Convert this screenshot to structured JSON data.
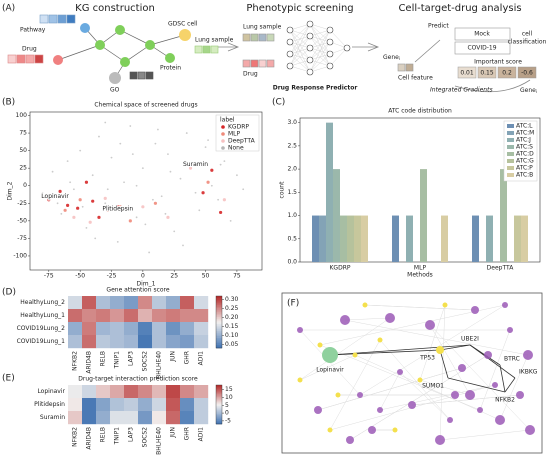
{
  "panel_a": {
    "label": "(A)",
    "titles": [
      "KG construction",
      "Phenotypic screening",
      "Cell-target-drug analysis"
    ],
    "kg": {
      "pathway": "Pathway",
      "gdsc": "GDSC cell",
      "lung": "Lung sample",
      "drug": "Drug",
      "protein": "Protein",
      "go": "GO"
    },
    "screen": {
      "lung": "Lung sample",
      "drug": "Drug",
      "predictor": "Drug Response Predictor"
    },
    "analysis": {
      "gene": "Gene",
      "sub": "i",
      "cell_feature": "Cell feature",
      "ig": "Integrated Gradients",
      "predict": "Predict",
      "mock": "Mock",
      "covid": "COVID-19",
      "cell_classification": [
        "cell",
        "classification"
      ],
      "important": "Important score",
      "scores": [
        0.01,
        0.15,
        0.2,
        -0.6
      ],
      "gene2": "Gene",
      "sub2": "i"
    }
  },
  "chart_data": [
    {
      "type": "scatter",
      "label": "(B)",
      "title": "Chemical space of screened drugs",
      "xlabel": "Dim_1",
      "ylabel": "Dim_2",
      "xlim": [
        -90,
        95
      ],
      "ylim": [
        -120,
        105
      ],
      "xticks": [
        -75,
        -50,
        -25,
        0,
        25,
        50,
        75
      ],
      "yticks": [
        -100,
        -75,
        -50,
        -25,
        0,
        25,
        50,
        75,
        100
      ],
      "legend_title": "label",
      "legend": "upper right",
      "series": [
        {
          "name": "KGDRP",
          "color": "#d62728",
          "points": [
            [
              -75,
              -20
            ],
            [
              -66,
              -8
            ],
            [
              -60,
              -28
            ],
            [
              -52,
              -32
            ],
            [
              -40,
              -22
            ],
            [
              -35,
              -45
            ],
            [
              -20,
              -30
            ],
            [
              -45,
              5
            ],
            [
              40,
              32
            ],
            [
              48,
              -10
            ],
            [
              55,
              22
            ],
            [
              62,
              -38
            ],
            [
              -70,
              -15
            ]
          ]
        },
        {
          "name": "MLP",
          "color": "#ef8a7a",
          "points": [
            [
              -62,
              -35
            ],
            [
              -50,
              -20
            ],
            [
              -28,
              -35
            ],
            [
              -10,
              -50
            ],
            [
              10,
              -25
            ],
            [
              52,
              5
            ],
            [
              -18,
              -30
            ]
          ]
        },
        {
          "name": "DeepTTA",
          "color": "#f6c1c1",
          "points": [
            [
              -55,
              -45
            ],
            [
              -42,
              -52
            ],
            [
              -30,
              -18
            ],
            [
              0,
              -30
            ],
            [
              20,
              -45
            ],
            [
              65,
              -20
            ],
            [
              38,
              25
            ]
          ]
        },
        {
          "name": "None",
          "color": "#b5b5b5",
          "points": [
            [
              -80,
              -10
            ],
            [
              -72,
              20
            ],
            [
              -65,
              -40
            ],
            [
              -60,
              35
            ],
            [
              -55,
              -5
            ],
            [
              -50,
              50
            ],
            [
              -45,
              -60
            ],
            [
              -40,
              15
            ],
            [
              -35,
              70
            ],
            [
              -30,
              -25
            ],
            [
              -25,
              40
            ],
            [
              -20,
              -80
            ],
            [
              -15,
              5
            ],
            [
              -10,
              85
            ],
            [
              -5,
              -45
            ],
            [
              0,
              25
            ],
            [
              5,
              -95
            ],
            [
              10,
              60
            ],
            [
              15,
              -15
            ],
            [
              20,
              45
            ],
            [
              25,
              -65
            ],
            [
              30,
              10
            ],
            [
              35,
              75
            ],
            [
              40,
              30
            ],
            [
              45,
              -35
            ],
            [
              50,
              55
            ],
            [
              55,
              0
            ],
            [
              60,
              -20
            ],
            [
              65,
              35
            ],
            [
              70,
              -50
            ],
            [
              75,
              15
            ],
            [
              80,
              -5
            ],
            [
              -68,
              -25
            ],
            [
              -48,
              -30
            ],
            [
              -28,
              -5
            ],
            [
              -8,
              45
            ],
            [
              12,
              80
            ],
            [
              32,
              -85
            ],
            [
              52,
              65
            ],
            [
              -58,
              5
            ],
            [
              -38,
              -75
            ],
            [
              -18,
              60
            ],
            [
              2,
              -55
            ],
            [
              22,
              20
            ],
            [
              42,
              -10
            ],
            [
              62,
              30
            ],
            [
              -5,
              0
            ],
            [
              18,
              -40
            ],
            [
              -30,
              90
            ],
            [
              8,
              -20
            ]
          ]
        }
      ],
      "annotations": [
        {
          "text": "Suramin",
          "x": 42,
          "y": 30
        },
        {
          "text": "Lopinavir",
          "x": -70,
          "y": -15
        },
        {
          "text": "Plitidepsin",
          "x": -20,
          "y": -33
        }
      ]
    },
    {
      "type": "bar",
      "label": "(C)",
      "title": "ATC code distribution",
      "xlabel": "Methods",
      "ylabel": "count",
      "categories": [
        "KGDRP",
        "MLP",
        "DeepTTA"
      ],
      "ylim": [
        0,
        3.1
      ],
      "yticks": [
        {
          "value": 0,
          "label": "0.0"
        },
        0.5,
        {
          "value": 1,
          "label": "1.0"
        },
        1.5,
        {
          "value": 2,
          "label": "2.0"
        },
        2.5,
        {
          "value": 3,
          "label": "3.0"
        }
      ],
      "legend": "upper right",
      "series": [
        {
          "name": "ATC:L",
          "color": "#6d8fb3",
          "values": [
            1,
            1,
            1
          ]
        },
        {
          "name": "ATC:M",
          "color": "#83a3b6",
          "values": [
            1,
            0,
            0
          ]
        },
        {
          "name": "ATC:J",
          "color": "#8fb0b2",
          "values": [
            3,
            1,
            1
          ]
        },
        {
          "name": "ATC:S",
          "color": "#9bb8ab",
          "values": [
            2,
            0,
            0
          ]
        },
        {
          "name": "ATC:D",
          "color": "#a7bea3",
          "values": [
            1,
            2,
            2
          ]
        },
        {
          "name": "ATC:G",
          "color": "#b6c29c",
          "values": [
            1,
            0,
            0
          ]
        },
        {
          "name": "ATC:P",
          "color": "#c7c79c",
          "values": [
            1,
            0,
            1
          ]
        },
        {
          "name": "ATC:B",
          "color": "#d8cda3",
          "values": [
            1,
            1,
            1
          ]
        }
      ]
    },
    {
      "type": "heatmap",
      "label": "(D)",
      "title": "Gene attention score",
      "rows": [
        "HealthyLung_2",
        "HealthyLung_1",
        "COVID19Lung_2",
        "COVID19Lung_1"
      ],
      "columns": [
        "NFKB2",
        "ARID4B",
        "RELB",
        "TNIP1",
        "LAP3",
        "SOCS2",
        "BHLHE40",
        "JUN",
        "GHR",
        "ADI1"
      ],
      "values": [
        [
          0.15,
          0.28,
          0.12,
          0.1,
          0.08,
          0.25,
          0.13,
          0.1,
          0.28,
          0.15
        ],
        [
          0.27,
          0.25,
          0.26,
          0.24,
          0.27,
          0.22,
          0.25,
          0.26,
          0.25,
          0.25
        ],
        [
          0.1,
          0.26,
          0.11,
          0.12,
          0.1,
          0.05,
          0.12,
          0.07,
          0.1,
          0.14
        ],
        [
          0.12,
          0.27,
          0.13,
          0.12,
          0.11,
          0.04,
          0.12,
          0.09,
          0.08,
          0.13
        ]
      ],
      "clim": [
        0.03,
        0.32
      ],
      "cticks": [
        0.05,
        {
          "value": 0.1,
          "label": "0.10"
        },
        0.15,
        {
          "value": 0.2,
          "label": "0.20"
        },
        0.25,
        {
          "value": 0.3,
          "label": "0.30"
        }
      ]
    },
    {
      "type": "heatmap",
      "label": "(E)",
      "title": "Drug-target interaction prediction score",
      "rows": [
        "Lopinavir",
        "Plitidepsin",
        "Suramin"
      ],
      "columns": [
        "NFKB2",
        "ARID4B",
        "RELB",
        "TNIP1",
        "LAP3",
        "SOCS2",
        "BHLHE40",
        "JUN",
        "GHR",
        "ADI1"
      ],
      "values": [
        [
          5,
          3,
          8,
          10,
          14,
          12,
          9,
          16,
          12,
          10
        ],
        [
          6,
          -6,
          -2,
          1,
          2,
          -1,
          3,
          15,
          -4,
          2
        ],
        [
          8,
          -6,
          -1,
          4,
          4,
          -3,
          6,
          14,
          -5,
          2
        ]
      ],
      "clim": [
        -7,
        18
      ],
      "cticks": [
        -5,
        0,
        5,
        10,
        15
      ]
    }
  ],
  "panel_f": {
    "label": "(F)",
    "nodes": [
      "Lopinavir",
      "TP53",
      "UBE2I",
      "SUMO1",
      "BTRC",
      "IKBKG",
      "NFKB2"
    ]
  }
}
